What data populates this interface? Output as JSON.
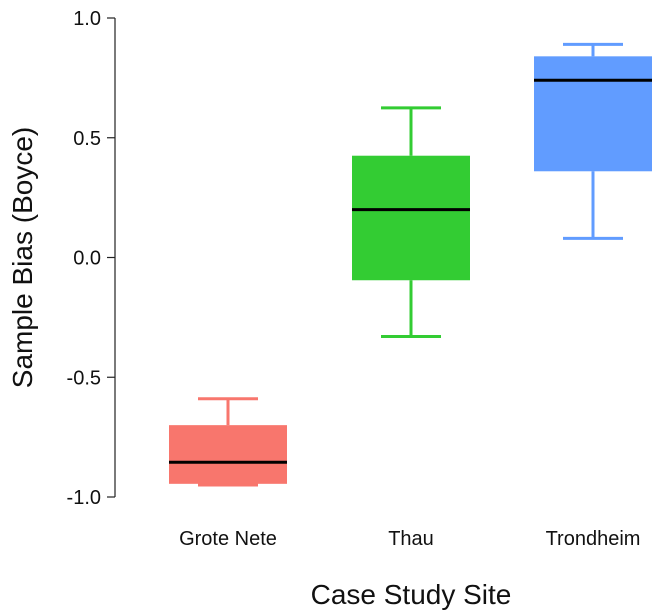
{
  "chart_data": {
    "type": "box",
    "title": "",
    "xlabel": "Case Study Site",
    "ylabel": "Sample Bias (Boyce)",
    "ylim": [
      -1.0,
      1.0
    ],
    "yticks": [
      1.0,
      0.5,
      0.0,
      -0.5,
      -1.0
    ],
    "ytick_labels": [
      "1.0",
      "0.5",
      "0.0",
      "-0.5",
      "-1.0"
    ],
    "grid": false,
    "legend": false,
    "categories": [
      "Grote Nete",
      "Thau",
      "Trondheim"
    ],
    "series": [
      {
        "category": "Grote Nete",
        "color": "#F8766D",
        "whisker_low": -0.95,
        "q1": -0.945,
        "median": -0.855,
        "q3": -0.7,
        "whisker_high": -0.59
      },
      {
        "category": "Thau",
        "color": "#33CC33",
        "whisker_low": -0.33,
        "q1": -0.095,
        "median": 0.2,
        "q3": 0.425,
        "whisker_high": 0.625
      },
      {
        "category": "Trondheim",
        "color": "#619CFF",
        "whisker_low": 0.08,
        "q1": 0.36,
        "median": 0.74,
        "q3": 0.84,
        "whisker_high": 0.89
      }
    ]
  }
}
